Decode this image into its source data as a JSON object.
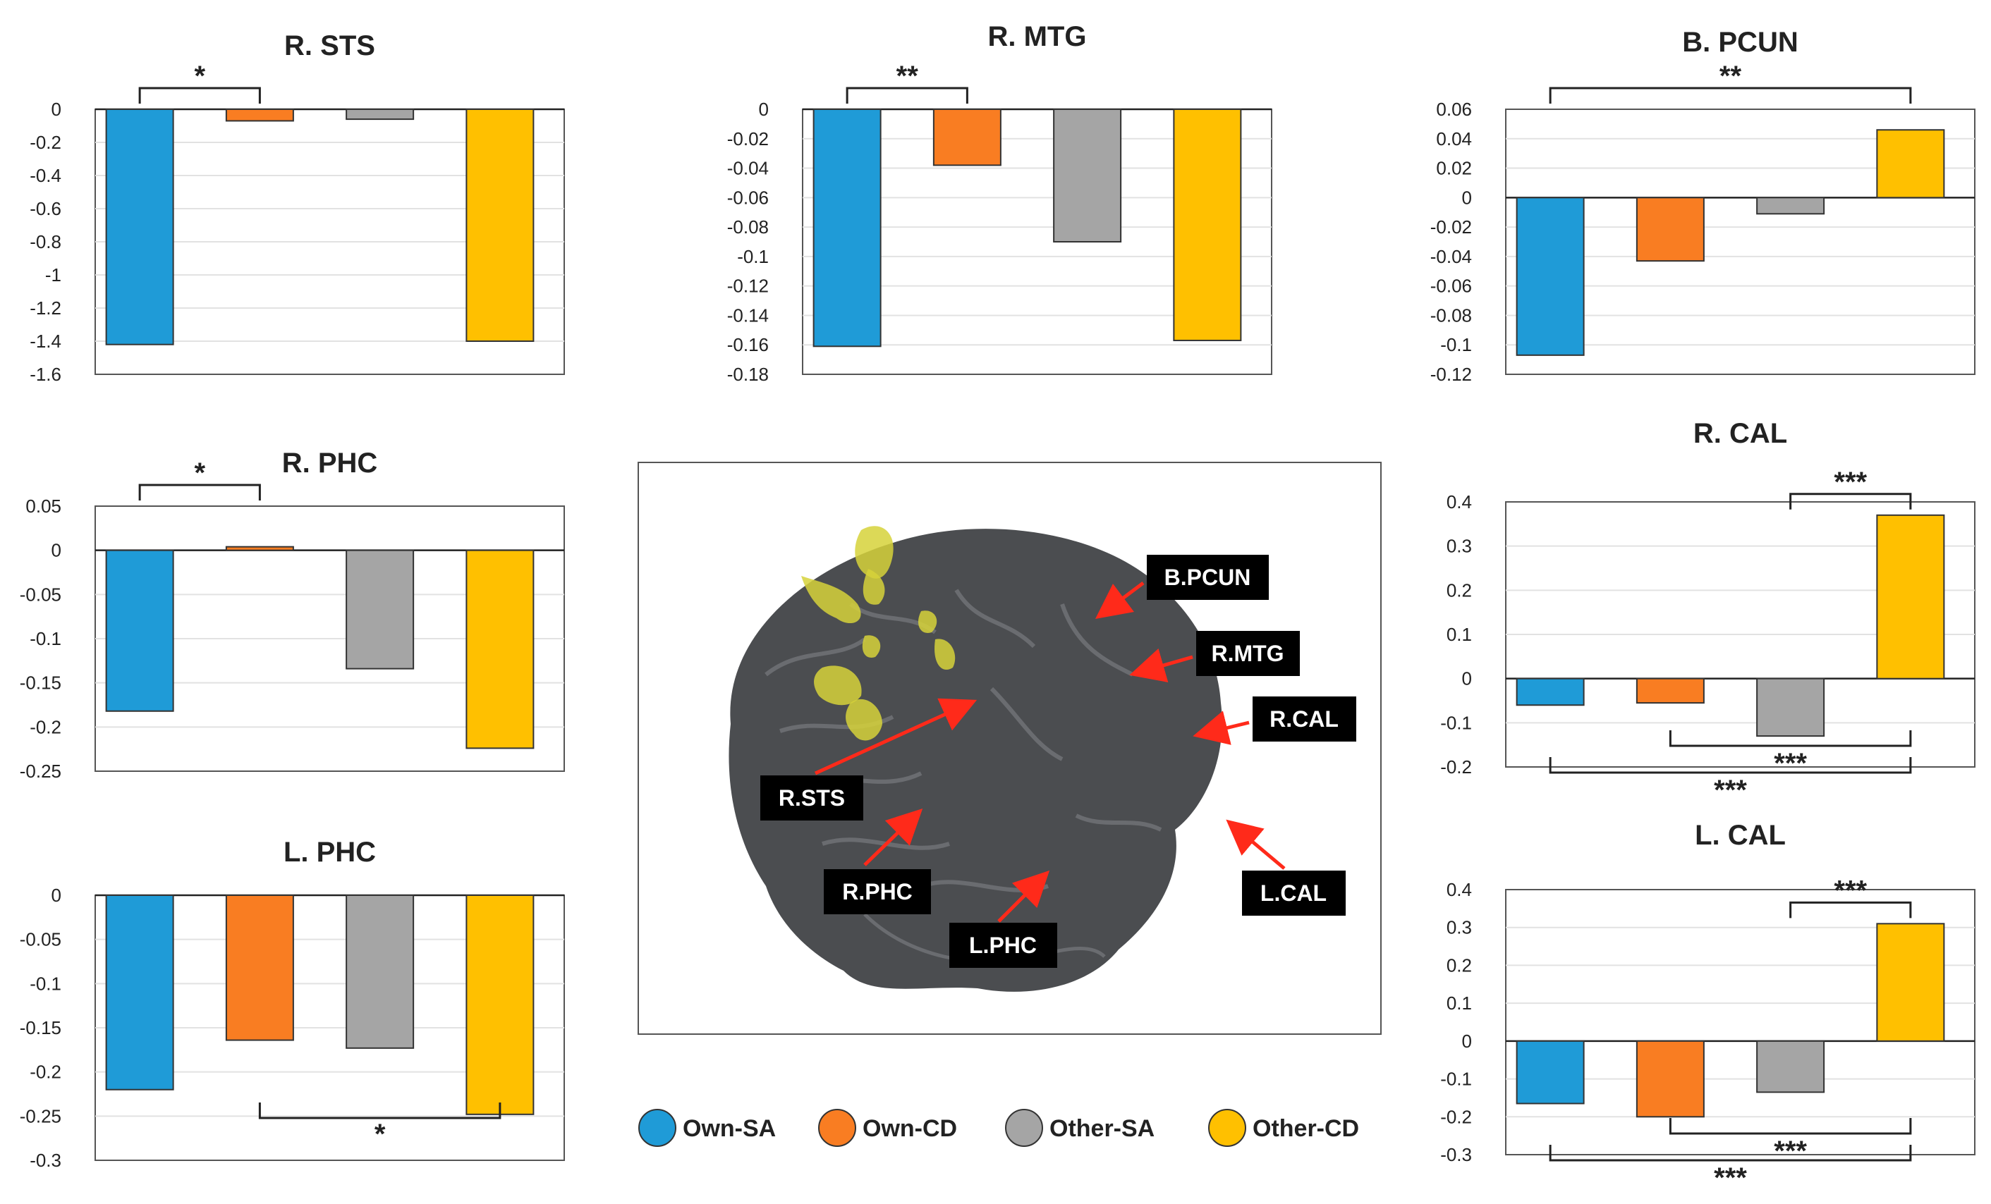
{
  "series_names": [
    "Own-SA",
    "Own-CD",
    "Other-SA",
    "Other-CD"
  ],
  "colors": {
    "Own-SA": "#1f9bd7",
    "Own-CD": "#f97d22",
    "Other-SA": "#a5a5a5",
    "Other-CD": "#ffc000"
  },
  "legend": [
    {
      "label": "Own-SA",
      "color": "#1f9bd7"
    },
    {
      "label": "Own-CD",
      "color": "#f97d22"
    },
    {
      "label": "Other-SA",
      "color": "#a5a5a5"
    },
    {
      "label": "Other-CD",
      "color": "#ffc000"
    }
  ],
  "brain_labels": [
    "B.PCUN",
    "R.MTG",
    "R.CAL",
    "L.CAL",
    "R.STS",
    "R.PHC",
    "L.PHC"
  ],
  "chart_data": [
    {
      "id": "rsts",
      "type": "bar",
      "title": "R. STS",
      "categories": [
        "Own-SA",
        "Own-CD",
        "Other-SA",
        "Other-CD"
      ],
      "values": [
        -1.42,
        -0.07,
        -0.06,
        -1.4
      ],
      "ylim": [
        -1.6,
        0
      ],
      "ticks": [
        "0",
        "-0.2",
        "-0.4",
        "-0.6",
        "-0.8",
        "-1",
        "-1.2",
        "-1.4",
        "-1.6"
      ],
      "brackets": [
        {
          "from": 0,
          "to": 1,
          "label": "*",
          "side": "top",
          "level": 0
        }
      ]
    },
    {
      "id": "rmtg",
      "type": "bar",
      "title": "R. MTG",
      "categories": [
        "Own-SA",
        "Own-CD",
        "Other-SA",
        "Other-CD"
      ],
      "values": [
        -0.161,
        -0.038,
        -0.09,
        -0.157
      ],
      "ylim": [
        -0.18,
        0
      ],
      "ticks": [
        "0",
        "-0.02",
        "-0.04",
        "-0.06",
        "-0.08",
        "-0.1",
        "-0.12",
        "-0.14",
        "-0.16",
        "-0.18"
      ],
      "brackets": [
        {
          "from": 0,
          "to": 1,
          "label": "**",
          "side": "top",
          "level": 0
        }
      ]
    },
    {
      "id": "bpcun",
      "type": "bar",
      "title": "B. PCUN",
      "categories": [
        "Own-SA",
        "Own-CD",
        "Other-SA",
        "Other-CD"
      ],
      "values": [
        -0.107,
        -0.043,
        -0.011,
        0.046
      ],
      "ylim": [
        -0.12,
        0.06
      ],
      "ticks": [
        "0.06",
        "0.04",
        "0.02",
        "0",
        "-0.02",
        "-0.04",
        "-0.06",
        "-0.08",
        "-0.1",
        "-0.12"
      ],
      "brackets": [
        {
          "from": 0,
          "to": 3,
          "label": "**",
          "side": "top",
          "level": 0
        }
      ]
    },
    {
      "id": "rphc",
      "type": "bar",
      "title": "R. PHC",
      "categories": [
        "Own-SA",
        "Own-CD",
        "Other-SA",
        "Other-CD"
      ],
      "values": [
        -0.182,
        0.004,
        -0.134,
        -0.224
      ],
      "ylim": [
        -0.25,
        0.05
      ],
      "ticks": [
        "0.05",
        "0",
        "-0.05",
        "-0.1",
        "-0.15",
        "-0.2",
        "-0.25"
      ],
      "brackets": [
        {
          "from": 0,
          "to": 1,
          "label": "*",
          "side": "top",
          "level": 0
        }
      ]
    },
    {
      "id": "lphc",
      "type": "bar",
      "title": "L. PHC",
      "categories": [
        "Own-SA",
        "Own-CD",
        "Other-SA",
        "Other-CD"
      ],
      "values": [
        -0.22,
        -0.164,
        -0.173,
        -0.248
      ],
      "ylim": [
        -0.3,
        0
      ],
      "ticks": [
        "0",
        "-0.05",
        "-0.1",
        "-0.15",
        "-0.2",
        "-0.25",
        "-0.3"
      ],
      "brackets": [
        {
          "from": 1,
          "to": 3,
          "label": "*",
          "side": "bottom",
          "level": 0
        }
      ]
    },
    {
      "id": "rcal",
      "type": "bar",
      "title": "R. CAL",
      "categories": [
        "Own-SA",
        "Own-CD",
        "Other-SA",
        "Other-CD"
      ],
      "values": [
        -0.06,
        -0.055,
        -0.13,
        0.37
      ],
      "ylim": [
        -0.2,
        0.4
      ],
      "ticks": [
        "0.4",
        "0.3",
        "0.2",
        "0.1",
        "0",
        "-0.1",
        "-0.2"
      ],
      "brackets": [
        {
          "from": 2,
          "to": 3,
          "label": "***",
          "side": "top",
          "level": 0
        },
        {
          "from": 1,
          "to": 3,
          "label": "***",
          "side": "bottom",
          "level": 0
        },
        {
          "from": 0,
          "to": 3,
          "label": "***",
          "side": "bottom",
          "level": 1
        }
      ]
    },
    {
      "id": "lcal",
      "type": "bar",
      "title": "L. CAL",
      "categories": [
        "Own-SA",
        "Own-CD",
        "Other-SA",
        "Other-CD"
      ],
      "values": [
        -0.165,
        -0.2,
        -0.135,
        0.31
      ],
      "ylim": [
        -0.3,
        0.4
      ],
      "ticks": [
        "0.4",
        "0.3",
        "0.2",
        "0.1",
        "0",
        "-0.1",
        "-0.2",
        "-0.3"
      ],
      "brackets": [
        {
          "from": 2,
          "to": 3,
          "label": "***",
          "side": "top",
          "level": 0
        },
        {
          "from": 1,
          "to": 3,
          "label": "***",
          "side": "bottom",
          "level": 0
        },
        {
          "from": 0,
          "to": 3,
          "label": "***",
          "side": "bottom",
          "level": 1
        }
      ]
    }
  ]
}
